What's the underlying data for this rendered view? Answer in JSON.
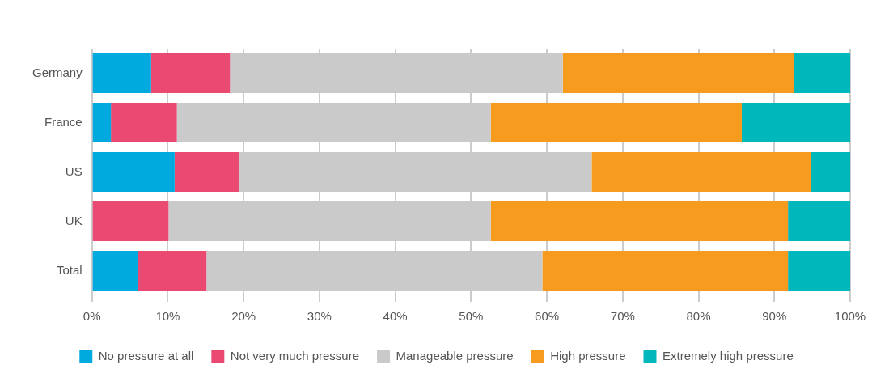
{
  "chart_data": {
    "type": "bar",
    "orientation": "horizontal",
    "stacked": true,
    "categories": [
      "Germany",
      "France",
      "US",
      "UK",
      "Total"
    ],
    "series": [
      {
        "name": "No pressure at all",
        "color": "#00a9de",
        "values": [
          7.8,
          2.5,
          10.9,
          0,
          6.1
        ]
      },
      {
        "name": "Not very much pressure",
        "color": "#ea4a72",
        "values": [
          10.4,
          8.7,
          8.5,
          10.1,
          9.0
        ]
      },
      {
        "name": "Manageable pressure",
        "color": "#cacaca",
        "values": [
          43.9,
          41.4,
          46.5,
          42.5,
          44.3
        ]
      },
      {
        "name": "High pressure",
        "color": "#f79b1f",
        "values": [
          30.5,
          33.1,
          28.9,
          39.2,
          32.4
        ]
      },
      {
        "name": "Extremely high pressure",
        "color": "#00b7bc",
        "values": [
          7.4,
          14.3,
          5.2,
          8.2,
          8.2
        ]
      }
    ],
    "xlim": [
      0,
      100
    ],
    "xticks": [
      {
        "value": 0,
        "label": "0%"
      },
      {
        "value": 10,
        "label": "10%"
      },
      {
        "value": 20,
        "label": "20%"
      },
      {
        "value": 30,
        "label": "30%"
      },
      {
        "value": 40,
        "label": "40%"
      },
      {
        "value": 50,
        "label": "50%"
      },
      {
        "value": 60,
        "label": "60%"
      },
      {
        "value": 70,
        "label": "70%"
      },
      {
        "value": 80,
        "label": "80%"
      },
      {
        "value": 90,
        "label": "90%"
      },
      {
        "value": 100,
        "label": "100%"
      }
    ],
    "grid": "x",
    "legend": "bottom"
  }
}
